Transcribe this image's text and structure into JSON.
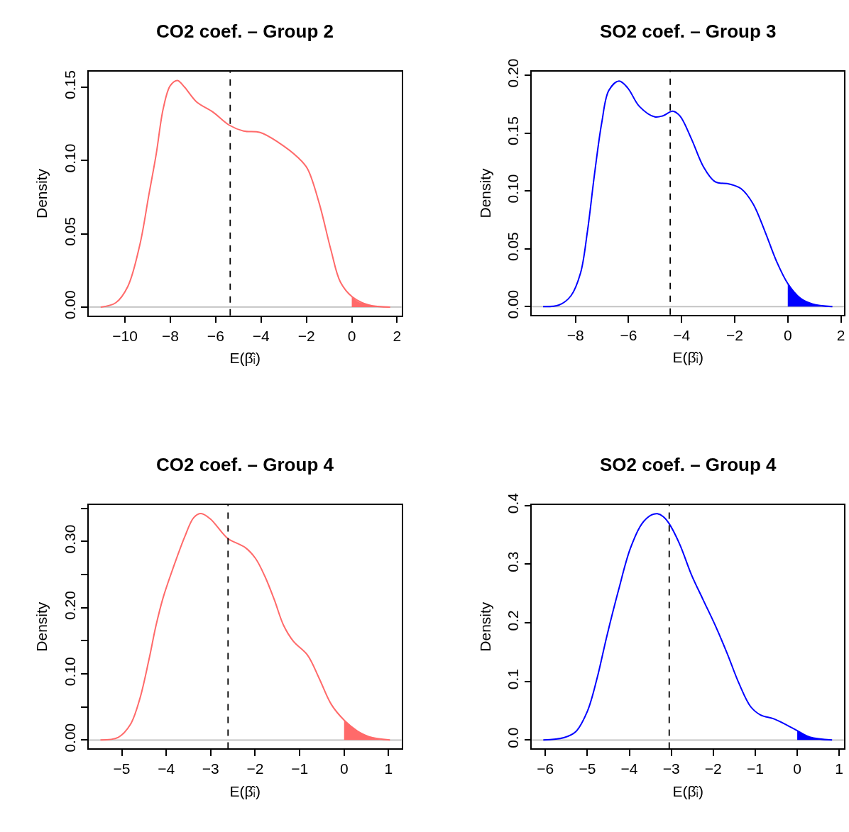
{
  "chart_data": [
    {
      "type": "line",
      "title": "CO2 coef. – Group 2",
      "xlabel": "E(β̂ᵢ)",
      "ylabel": "Density",
      "xlim": [
        -11.6,
        2.19
      ],
      "ylim": [
        -0.0057,
        0.1604
      ],
      "xticks": [
        {
          "value": -10,
          "label": "−10"
        },
        {
          "value": -8,
          "label": "−8"
        },
        {
          "value": -6,
          "label": "−6"
        },
        {
          "value": -4,
          "label": "−4"
        },
        {
          "value": -2,
          "label": "−2"
        },
        0,
        2
      ],
      "yticks": [
        {
          "value": 0,
          "label": "0.00"
        },
        {
          "value": 0.05,
          "label": "0.05"
        },
        {
          "value": 0.1,
          "label": "0.10"
        },
        {
          "value": 0.15,
          "label": "0.15"
        }
      ],
      "series": [
        {
          "color": "#ff6a6a",
          "x": [
            -11.07,
            -10.4,
            -9.875,
            -9.35,
            -8.94,
            -8.625,
            -8.31,
            -8.0,
            -7.69,
            -7.375,
            -6.85,
            -6.125,
            -5.4,
            -4.77,
            -4.04,
            -3.21,
            -2.375,
            -1.96,
            -1.44,
            -0.92,
            -0.5,
            0.02,
            0.75,
            1.69
          ],
          "values": [
            0,
            0.003,
            0.014,
            0.042,
            0.077,
            0.104,
            0.1355,
            0.151,
            0.1545,
            0.15,
            0.14,
            0.133,
            0.124,
            0.12,
            0.119,
            0.112,
            0.102,
            0.0945,
            0.071,
            0.039,
            0.017,
            0.007,
            0.0014,
            0
          ]
        },
        {
          "type": "area",
          "color": "#ff6a6a",
          "x": [
            0,
            0.2,
            0.4,
            0.75,
            1.2,
            1.69
          ],
          "values": [
            0.007,
            0.0045,
            0.003,
            0.0014,
            0.0004,
            0
          ]
        }
      ],
      "ref_lines": [
        {
          "axis": "x",
          "value": -5.36,
          "color": "#000000",
          "line_style": "dashed"
        },
        {
          "axis": "y",
          "value": 0,
          "color": "#bebebe",
          "line_style": "solid"
        }
      ]
    },
    {
      "type": "line",
      "title": "SO2 coef. – Group 3",
      "xlabel": "E(β̂ᵢ)",
      "ylabel": "Density",
      "xlim": [
        -9.64,
        2.12
      ],
      "ylim": [
        -0.007,
        0.203
      ],
      "xticks": [
        {
          "value": -8,
          "label": "−8"
        },
        {
          "value": -6,
          "label": "−6"
        },
        {
          "value": -4,
          "label": "−4"
        },
        {
          "value": -2,
          "label": "−2"
        },
        0,
        2
      ],
      "yticks": [
        {
          "value": 0,
          "label": "0.00"
        },
        {
          "value": 0.05,
          "label": "0.05"
        },
        {
          "value": 0.1,
          "label": "0.10"
        },
        {
          "value": 0.15,
          "label": "0.15"
        },
        {
          "value": 0.2,
          "label": "0.20"
        }
      ],
      "series": [
        {
          "color": "#0000ff",
          "x": [
            -9.22,
            -8.62,
            -8.17,
            -7.81,
            -7.55,
            -7.28,
            -7.01,
            -6.74,
            -6.36,
            -6.03,
            -5.59,
            -5.01,
            -4.7,
            -4.34,
            -4.07,
            -3.63,
            -3.18,
            -2.74,
            -2.2,
            -1.76,
            -1.31,
            -0.86,
            -0.42,
            0,
            0.47,
            0.92,
            1.68
          ],
          "values": [
            0,
            0.0014,
            0.0094,
            0.029,
            0.065,
            0.115,
            0.159,
            0.187,
            0.195,
            0.189,
            0.173,
            0.164,
            0.165,
            0.169,
            0.165,
            0.145,
            0.121,
            0.108,
            0.106,
            0.102,
            0.089,
            0.065,
            0.039,
            0.02,
            0.0074,
            0.0024,
            0
          ]
        },
        {
          "type": "area",
          "color": "#0000ff",
          "x": [
            0,
            0.2,
            0.47,
            0.92,
            1.3,
            1.68
          ],
          "values": [
            0.02,
            0.0135,
            0.0074,
            0.0024,
            0.0006,
            0
          ]
        }
      ],
      "ref_lines": [
        {
          "axis": "x",
          "value": -4.43,
          "color": "#000000",
          "line_style": "dashed"
        },
        {
          "axis": "y",
          "value": 0,
          "color": "#bebebe",
          "line_style": "solid"
        }
      ]
    },
    {
      "type": "line",
      "title": "CO2 coef. – Group 4",
      "xlabel": "E(β̂ᵢ)",
      "ylabel": "Density",
      "xlim": [
        -5.745,
        1.29
      ],
      "ylim": [
        -0.013,
        0.355
      ],
      "xticks": [
        {
          "value": -5,
          "label": "−5"
        },
        {
          "value": -4,
          "label": "−4"
        },
        {
          "value": -3,
          "label": "−3"
        },
        {
          "value": -2,
          "label": "−2"
        },
        {
          "value": -1,
          "label": "−1"
        },
        0,
        1
      ],
      "yticks": [
        {
          "value": 0,
          "label": "0.00"
        },
        {
          "value": 0.05,
          "label": null
        },
        {
          "value": 0.1,
          "label": "0.10"
        },
        {
          "value": 0.15,
          "label": null
        },
        {
          "value": 0.2,
          "label": "0.20"
        },
        {
          "value": 0.25,
          "label": null
        },
        {
          "value": 0.3,
          "label": "0.30"
        },
        {
          "value": 0.35,
          "label": null
        }
      ],
      "series": [
        {
          "color": "#ff6a6a",
          "x": [
            -5.48,
            -5.08,
            -4.81,
            -4.6,
            -4.39,
            -4.23,
            -4.07,
            -3.86,
            -3.59,
            -3.38,
            -3.22,
            -3.01,
            -2.74,
            -2.61,
            -2.21,
            -1.99,
            -1.78,
            -1.57,
            -1.36,
            -1.14,
            -0.82,
            -0.56,
            -0.29,
            0,
            0.29,
            0.56,
            1.03
          ],
          "values": [
            0,
            0.004,
            0.023,
            0.061,
            0.121,
            0.173,
            0.215,
            0.257,
            0.306,
            0.336,
            0.342,
            0.334,
            0.313,
            0.304,
            0.29,
            0.274,
            0.247,
            0.212,
            0.173,
            0.149,
            0.128,
            0.093,
            0.054,
            0.03,
            0.014,
            0.005,
            0
          ]
        },
        {
          "type": "area",
          "color": "#ff6a6a",
          "x": [
            0,
            0.15,
            0.29,
            0.56,
            0.8,
            1.03
          ],
          "values": [
            0.03,
            0.021,
            0.014,
            0.005,
            0.001,
            0
          ]
        }
      ],
      "ref_lines": [
        {
          "axis": "x",
          "value": -2.61,
          "color": "#000000",
          "line_style": "dashed"
        },
        {
          "axis": "y",
          "value": 0,
          "color": "#bebebe",
          "line_style": "solid"
        }
      ]
    },
    {
      "type": "line",
      "title": "SO2 coef. – Group 4",
      "xlabel": "E(β̂ᵢ)",
      "ylabel": "Density",
      "xlim": [
        -6.32,
        1.115
      ],
      "ylim": [
        -0.0146,
        0.401
      ],
      "xticks": [
        {
          "value": -6,
          "label": "−6"
        },
        {
          "value": -5,
          "label": "−5"
        },
        {
          "value": -4,
          "label": "−4"
        },
        {
          "value": -3,
          "label": "−3"
        },
        {
          "value": -2,
          "label": "−2"
        },
        {
          "value": -1,
          "label": "−1"
        },
        0,
        1
      ],
      "yticks": [
        {
          "value": 0,
          "label": "0.0"
        },
        {
          "value": 0.1,
          "label": "0.1"
        },
        {
          "value": 0.2,
          "label": "0.2"
        },
        {
          "value": 0.3,
          "label": "0.3"
        },
        {
          "value": 0.4,
          "label": "0.4"
        }
      ],
      "series": [
        {
          "color": "#0000ff",
          "x": [
            -6.05,
            -5.56,
            -5.28,
            -5.0,
            -4.77,
            -4.54,
            -4.26,
            -3.98,
            -3.7,
            -3.47,
            -3.33,
            -3.19,
            -3.05,
            -2.8,
            -2.52,
            -2.24,
            -1.95,
            -1.67,
            -1.39,
            -1.11,
            -0.88,
            -0.55,
            -0.26,
            0,
            0.3,
            0.83
          ],
          "values": [
            0,
            0.004,
            0.014,
            0.049,
            0.105,
            0.176,
            0.255,
            0.326,
            0.369,
            0.384,
            0.386,
            0.381,
            0.369,
            0.334,
            0.282,
            0.239,
            0.195,
            0.148,
            0.097,
            0.057,
            0.043,
            0.036,
            0.026,
            0.016,
            0.005,
            0
          ]
        },
        {
          "type": "area",
          "color": "#0000ff",
          "x": [
            0,
            0.15,
            0.3,
            0.55,
            0.83
          ],
          "values": [
            0.016,
            0.01,
            0.005,
            0.001,
            0
          ]
        }
      ],
      "ref_lines": [
        {
          "axis": "x",
          "value": -3.05,
          "color": "#000000",
          "line_style": "dashed"
        },
        {
          "axis": "y",
          "value": 0,
          "color": "#bebebe",
          "line_style": "solid"
        }
      ]
    }
  ]
}
